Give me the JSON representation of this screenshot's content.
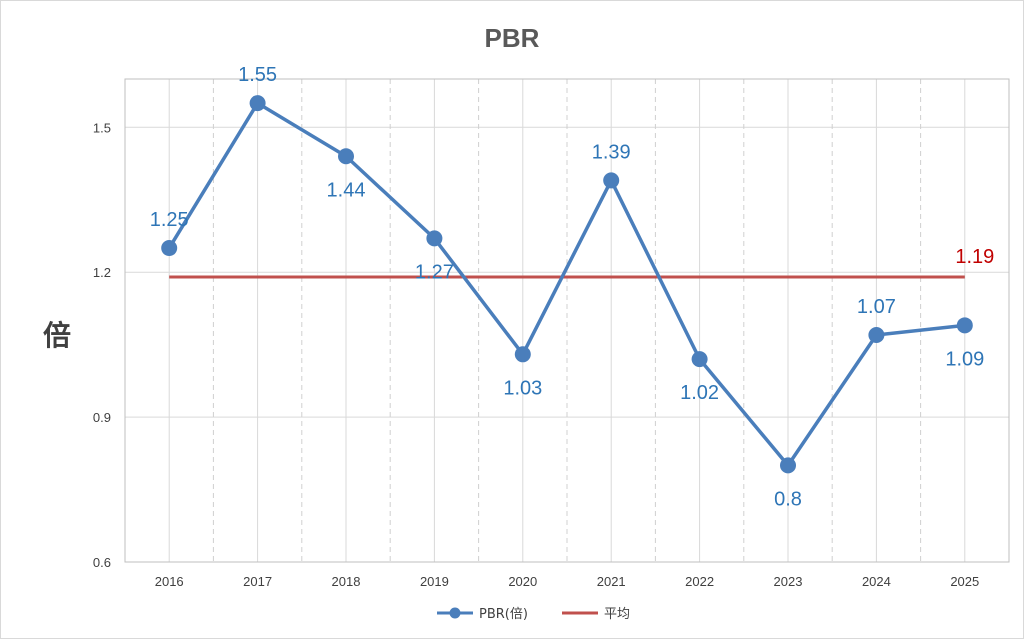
{
  "chart_data": {
    "type": "line",
    "title": "PBR",
    "ylabel": "倍",
    "xlabel": "",
    "categories": [
      "2016",
      "2017",
      "2018",
      "2019",
      "2020",
      "2021",
      "2022",
      "2023",
      "2024",
      "2025"
    ],
    "series": [
      {
        "name": "PBR(倍)",
        "values": [
          1.25,
          1.55,
          1.44,
          1.27,
          1.03,
          1.39,
          1.02,
          0.8,
          1.07,
          1.09
        ],
        "labels": [
          "1.25",
          "1.55",
          "1.44",
          "1.27",
          "1.03",
          "1.39",
          "1.02",
          "0.8",
          "1.07",
          "1.09"
        ],
        "color": "#4a7ebb"
      },
      {
        "name": "平均",
        "values": [
          1.19,
          1.19,
          1.19,
          1.19,
          1.19,
          1.19,
          1.19,
          1.19,
          1.19,
          1.19
        ],
        "end_label": "1.19",
        "color": "#c0504d"
      }
    ],
    "ylim": [
      0.6,
      1.6
    ],
    "yticks": [
      "0.6",
      "0.9",
      "1.2",
      "1.5"
    ],
    "ytick_values": [
      0.6,
      0.9,
      1.2,
      1.5
    ],
    "grid": true,
    "legend": "bottom-center"
  }
}
